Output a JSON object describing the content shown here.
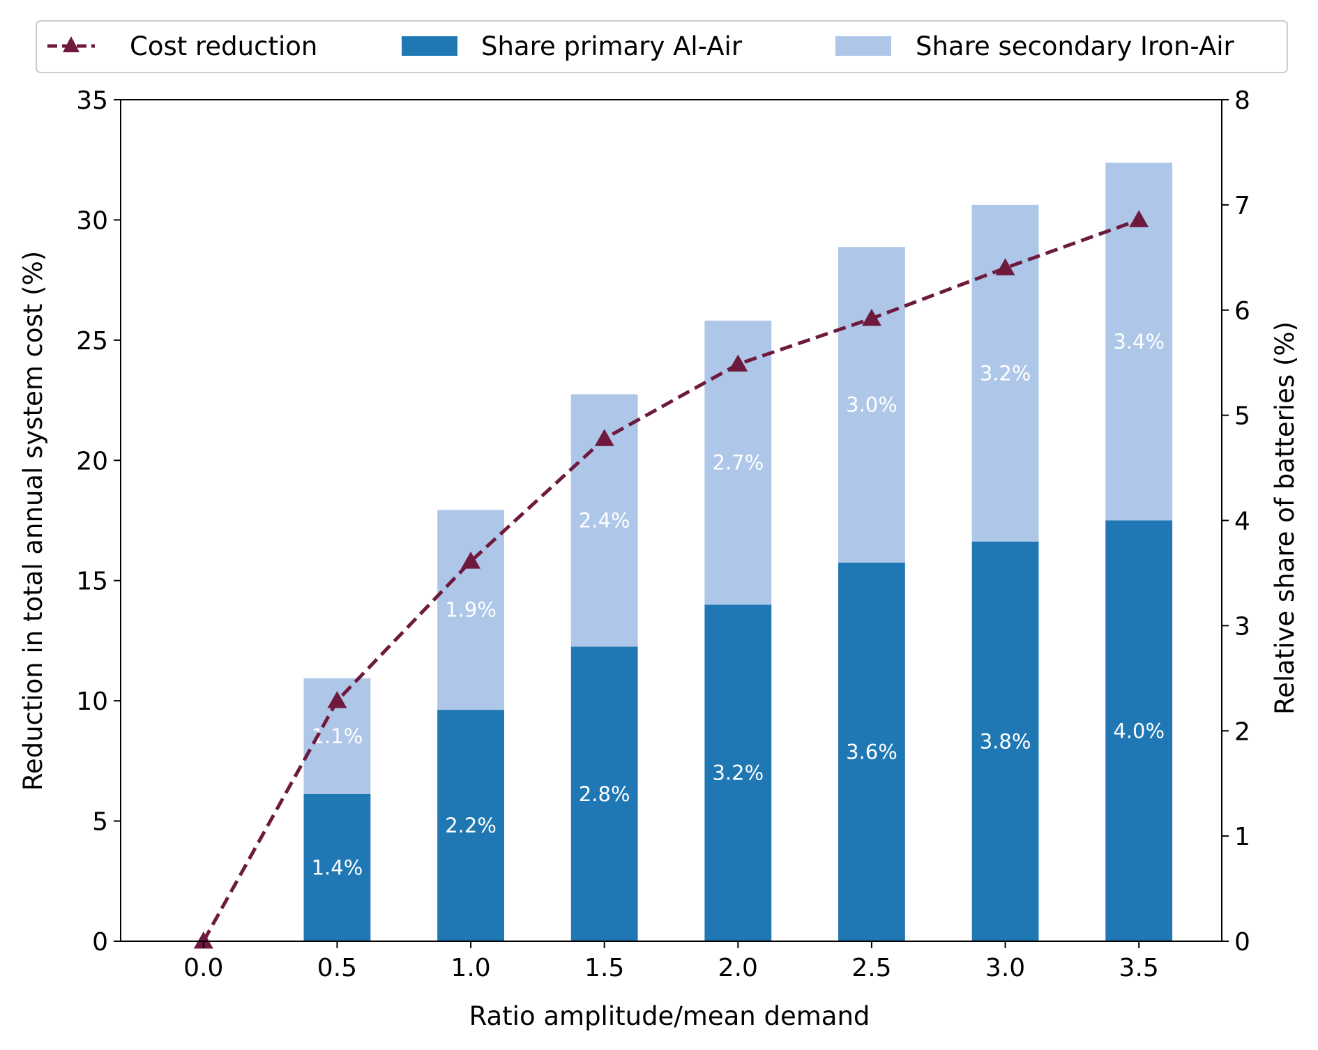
{
  "colors": {
    "primary": "#1f77b4",
    "secondary": "#aec7e8",
    "line": "#6d1a3e",
    "axis": "#000000",
    "bar_label": "#ffffff"
  },
  "chart_data": {
    "type": "bar",
    "x": [
      0.0,
      0.5,
      1.0,
      1.5,
      2.0,
      2.5,
      3.0,
      3.5
    ],
    "x_tick_labels": [
      "0.0",
      "0.5",
      "1.0",
      "1.5",
      "2.0",
      "2.5",
      "3.0",
      "3.5"
    ],
    "xlim": [
      -0.31,
      3.81
    ],
    "xlabel": "Ratio amplitude/mean demand",
    "ylabel_left": "Reduction in total annual system cost (%)",
    "ylabel_right": "Relative share of batteries (%)",
    "ylim_left": [
      0,
      35
    ],
    "ylim_right": [
      0,
      8
    ],
    "yticks_left": [
      "0",
      "5",
      "10",
      "15",
      "20",
      "25",
      "30",
      "35"
    ],
    "yticks_right": [
      "0",
      "1",
      "2",
      "3",
      "4",
      "5",
      "6",
      "7",
      "8"
    ],
    "grid": false,
    "legend_position": "top, above plot",
    "series": [
      {
        "name": "Cost reduction",
        "type": "line",
        "axis": "left",
        "style": "dashed, triangle markers",
        "values": [
          0.0,
          10.0,
          15.8,
          20.9,
          24.0,
          25.9,
          28.0,
          30.0
        ]
      },
      {
        "name": "Share primary Al-Air",
        "type": "bar",
        "axis": "right",
        "stack": "bottom",
        "values": [
          0.0,
          1.4,
          2.2,
          2.8,
          3.2,
          3.6,
          3.8,
          4.0
        ],
        "labels": [
          "",
          "1.4%",
          "2.2%",
          "2.8%",
          "3.2%",
          "3.6%",
          "3.8%",
          "4.0%"
        ]
      },
      {
        "name": "Share secondary Iron-Air",
        "type": "bar",
        "axis": "right",
        "stack": "top",
        "values": [
          0.0,
          1.1,
          1.9,
          2.4,
          2.7,
          3.0,
          3.2,
          3.4
        ],
        "labels": [
          "",
          "1.1%",
          "1.9%",
          "2.4%",
          "2.7%",
          "3.0%",
          "3.2%",
          "3.4%"
        ]
      }
    ]
  }
}
